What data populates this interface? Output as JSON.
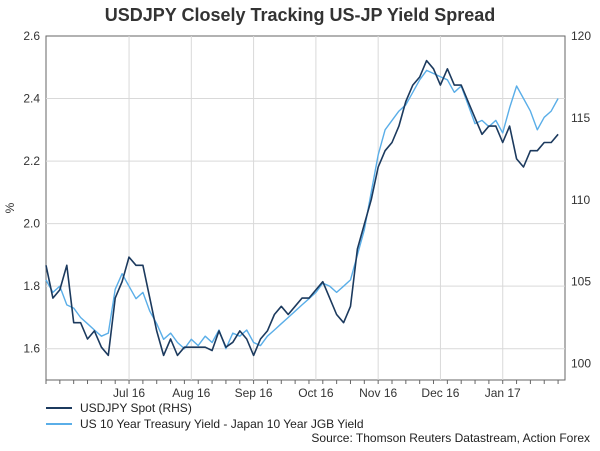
{
  "chart_data": {
    "type": "line",
    "title": "USDJPY Closely Tracking US-JP Yield Spread",
    "xlabel": "",
    "ylabel": "%",
    "ylabel_right": "",
    "x_tick_labels": [
      "Jul 16",
      "Aug 16",
      "Sep 16",
      "Oct 16",
      "Nov 16",
      "Dec 16",
      "Jan 17"
    ],
    "x_tick_weeks": [
      6,
      10.5,
      15,
      19.5,
      24,
      28.5,
      33
    ],
    "x_range": [
      0,
      37.5
    ],
    "ylim": [
      1.5,
      2.6
    ],
    "y_ticks": [
      1.6,
      1.8,
      2.0,
      2.2,
      2.4,
      2.6
    ],
    "y_tick_labels": [
      "1.6",
      "1.8",
      "2.0",
      "2.2",
      "2.4",
      "2.6"
    ],
    "ylim_right": [
      99,
      120
    ],
    "y_ticks_right": [
      100,
      105,
      110,
      115,
      120
    ],
    "y_tick_labels_right": [
      "100",
      "105",
      "110",
      "115",
      "120"
    ],
    "grid": true,
    "legend_position": "bottom-left",
    "series": [
      {
        "name": "USDJPY Spot (RHS)",
        "axis": "right",
        "color": "#1c3a5e",
        "x": [
          0,
          0.5,
          1,
          1.5,
          2,
          2.5,
          3,
          3.5,
          4,
          4.5,
          5,
          5.5,
          6,
          6.5,
          7,
          7.5,
          8,
          8.5,
          9,
          9.5,
          10,
          10.5,
          11,
          11.5,
          12,
          12.5,
          13,
          13.5,
          14,
          14.5,
          15,
          15.5,
          16,
          16.5,
          17,
          17.5,
          18,
          18.5,
          19,
          19.5,
          20,
          20.5,
          21,
          21.5,
          22,
          22.5,
          23,
          23.5,
          24,
          24.5,
          25,
          25.5,
          26,
          26.5,
          27,
          27.5,
          28,
          28.5,
          29,
          29.5,
          30,
          30.5,
          31,
          31.5,
          32,
          32.5,
          33,
          33.5,
          34,
          34.5,
          35,
          35.5,
          36,
          36.5,
          37
        ],
        "values": [
          106,
          104,
          104.5,
          106,
          102.5,
          102.5,
          101.5,
          102,
          101,
          100.5,
          104,
          105,
          106.5,
          106,
          106,
          104,
          102,
          100.5,
          101.5,
          100.5,
          101,
          101,
          101,
          101,
          100.8,
          102,
          101,
          101.3,
          102,
          101.5,
          100.5,
          101.5,
          102,
          103,
          103.5,
          103,
          103.5,
          104,
          104,
          104.5,
          105,
          104,
          103,
          102.5,
          103.5,
          107,
          108.5,
          110,
          112,
          113,
          113.5,
          114.5,
          116,
          117,
          117.5,
          118.5,
          118,
          117,
          118,
          117,
          117,
          116,
          115,
          114,
          114.5,
          114.5,
          113.5,
          114.5,
          112.5,
          112,
          113,
          113,
          113.5,
          113.5,
          114
        ],
        "end_value": 114
      },
      {
        "name": "US 10 Year Treasury Yield - Japan 10 Year JGB Yield",
        "axis": "left",
        "color": "#5aaee8",
        "x": [
          0,
          0.5,
          1,
          1.5,
          2,
          2.5,
          3,
          3.5,
          4,
          4.5,
          5,
          5.5,
          6,
          6.5,
          7,
          7.5,
          8,
          8.5,
          9,
          9.5,
          10,
          10.5,
          11,
          11.5,
          12,
          12.5,
          13,
          13.5,
          14,
          14.5,
          15,
          15.5,
          16,
          16.5,
          17,
          17.5,
          18,
          18.5,
          19,
          19.5,
          20,
          20.5,
          21,
          21.5,
          22,
          22.5,
          23,
          23.5,
          24,
          24.5,
          25,
          25.5,
          26,
          26.5,
          27,
          27.5,
          28,
          28.5,
          29,
          29.5,
          30,
          30.5,
          31,
          31.5,
          32,
          32.5,
          33,
          33.5,
          34,
          34.5,
          35,
          35.5,
          36,
          36.5,
          37
        ],
        "values": [
          1.82,
          1.78,
          1.8,
          1.74,
          1.73,
          1.7,
          1.68,
          1.66,
          1.64,
          1.65,
          1.79,
          1.84,
          1.8,
          1.76,
          1.78,
          1.72,
          1.68,
          1.63,
          1.65,
          1.62,
          1.6,
          1.63,
          1.61,
          1.64,
          1.62,
          1.66,
          1.6,
          1.65,
          1.64,
          1.66,
          1.62,
          1.61,
          1.64,
          1.66,
          1.68,
          1.7,
          1.72,
          1.74,
          1.76,
          1.78,
          1.81,
          1.8,
          1.78,
          1.8,
          1.82,
          1.9,
          1.98,
          2.1,
          2.22,
          2.3,
          2.33,
          2.36,
          2.38,
          2.42,
          2.46,
          2.49,
          2.48,
          2.47,
          2.46,
          2.42,
          2.44,
          2.38,
          2.32,
          2.33,
          2.31,
          2.33,
          2.29,
          2.37,
          2.44,
          2.4,
          2.36,
          2.3,
          2.34,
          2.36,
          2.4
        ],
        "end_value": 2.4
      }
    ]
  },
  "source": "Source: Thomson Reuters Datastream, Action Forex"
}
